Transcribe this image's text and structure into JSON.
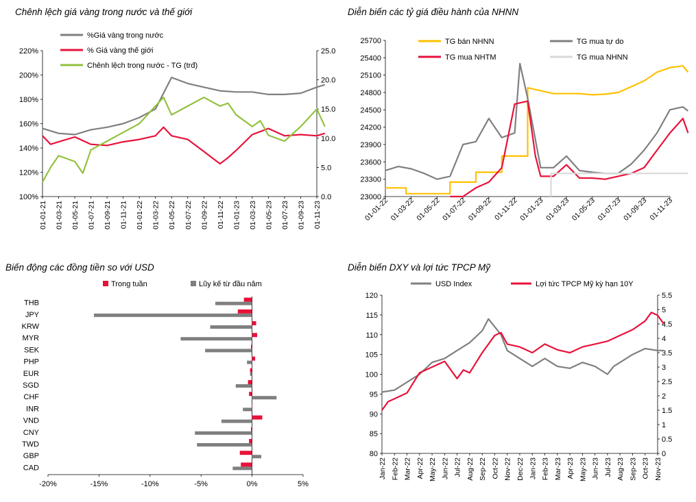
{
  "chart_data": [
    {
      "type": "line",
      "title": "Chênh lệch giá vàng trong nước và thế giới",
      "x_tick_labels": [
        "01-01-21",
        "01-03-21",
        "01-05-21",
        "01-07-21",
        "01-09-21",
        "01-11-21",
        "01-01-22",
        "01-03-22",
        "01-05-22",
        "01-07-22",
        "01-09-22",
        "01-11-22",
        "01-01-23",
        "01-03-23",
        "01-05-23",
        "01-07-23",
        "01-09-23",
        "01-11-23"
      ],
      "y_left": {
        "ticks": [
          "100%",
          "120%",
          "140%",
          "160%",
          "180%",
          "200%",
          "220%"
        ],
        "min": 100,
        "max": 220
      },
      "y_right": {
        "ticks": [
          "0.0",
          "5.0",
          "10.0",
          "15.0",
          "20.0",
          "25.0"
        ],
        "min": 0,
        "max": 25
      },
      "series": [
        {
          "name": "%Giá vàng trong nước",
          "axis": "left",
          "color": "#7f7f7f",
          "x": [
            0,
            1,
            2,
            3,
            4,
            5,
            6,
            7,
            8,
            9,
            10,
            11,
            12,
            13,
            14,
            15,
            16,
            17,
            17.5
          ],
          "values": [
            156,
            152,
            151,
            155,
            157,
            160,
            165,
            172,
            198,
            193,
            190,
            187,
            186,
            186,
            184,
            184,
            185,
            190,
            192
          ]
        },
        {
          "name": "% Giá vàng thế giới",
          "axis": "left",
          "color": "#e8113a",
          "x": [
            0,
            0.5,
            1,
            2,
            3,
            4,
            5,
            6,
            7,
            7.5,
            8,
            9,
            10,
            11,
            11.5,
            12,
            13,
            14,
            15,
            16,
            17,
            17.5
          ],
          "values": [
            150,
            143,
            145,
            149,
            143,
            142,
            145,
            147,
            150,
            157,
            150,
            147,
            137,
            127,
            132,
            138,
            151,
            156,
            150,
            151,
            150,
            152
          ]
        },
        {
          "name": "Chênh lệch trong nước - TG (trđ)",
          "axis": "right",
          "color": "#92c13e",
          "x": [
            0,
            0.5,
            1,
            2,
            2.5,
            3,
            4,
            5,
            6,
            7,
            7.5,
            8,
            9,
            10,
            11,
            11.5,
            12,
            13,
            13.5,
            14,
            15,
            16,
            17,
            17.5
          ],
          "values": [
            2.5,
            5,
            7,
            6,
            4,
            8,
            9.5,
            11,
            12.5,
            15.5,
            17,
            14,
            15.5,
            17,
            15.5,
            16,
            14,
            12,
            13,
            10.5,
            9.5,
            12,
            15,
            12
          ]
        }
      ]
    },
    {
      "type": "line",
      "title": "Diễn biến các tỷ giá điều hành của NHNN",
      "x_tick_labels": [
        "01-01-22",
        "01-03-22",
        "01-05-22",
        "01-07-22",
        "01-09-22",
        "01-11-22",
        "01-01-23",
        "01-03-23",
        "01-05-23",
        "01-07-23",
        "01-09-23",
        "01-11-23"
      ],
      "y": {
        "ticks": [
          "23000",
          "23300",
          "23600",
          "23900",
          "24200",
          "24500",
          "24800",
          "25100",
          "25400",
          "25700"
        ],
        "min": 23000,
        "max": 25700
      },
      "series": [
        {
          "name": "TG bán NHNN",
          "color": "#ffc000",
          "x": [
            0,
            0.8,
            0.8,
            2.5,
            2.5,
            3.5,
            3.5,
            4.5,
            4.5,
            5.5,
            5.5,
            6.5,
            7,
            7.5,
            8,
            8.5,
            9,
            9.5,
            10,
            10.5,
            11,
            11.5,
            11.7
          ],
          "values": [
            23150,
            23150,
            23050,
            23050,
            23250,
            23250,
            23420,
            23420,
            23700,
            23700,
            24880,
            24780,
            24780,
            24780,
            24760,
            24770,
            24800,
            24900,
            25000,
            25150,
            25230,
            25260,
            25150
          ]
        },
        {
          "name": "TG mua tự do",
          "color": "#7f7f7f",
          "x": [
            0,
            0.5,
            1,
            1.5,
            2,
            2.5,
            3,
            3.5,
            4,
            4.5,
            5,
            5.2,
            5.5,
            6,
            6.5,
            7,
            7.5,
            8,
            8.5,
            9,
            9.5,
            10,
            10.5,
            11,
            11.5,
            11.7
          ],
          "values": [
            23450,
            23520,
            23480,
            23400,
            23300,
            23350,
            23900,
            23950,
            24350,
            24020,
            24100,
            25300,
            24700,
            23500,
            23500,
            23700,
            23450,
            23420,
            23400,
            23400,
            23560,
            23800,
            24100,
            24500,
            24550,
            24480
          ]
        },
        {
          "name": "TG mua NHTM",
          "color": "#e8113a",
          "x": [
            2.5,
            3,
            3.5,
            4,
            4.5,
            5,
            5.5,
            5.8,
            6,
            6.5,
            7,
            7.5,
            8,
            8.5,
            9,
            9.5,
            10,
            10.5,
            11,
            11.5,
            11.7
          ],
          "values": [
            23000,
            23000,
            23150,
            23250,
            23500,
            24600,
            24650,
            23700,
            23350,
            23350,
            23550,
            23320,
            23320,
            23300,
            23350,
            23400,
            23500,
            23800,
            24100,
            24350,
            24100
          ]
        },
        {
          "name": "TG mua NHNN",
          "color": "#d9d9d9",
          "x": [
            6.4,
            6.4,
            11.7
          ],
          "values": [
            23000,
            23400,
            23400
          ]
        }
      ]
    },
    {
      "type": "bar",
      "title": "Biến động các đồng tiền so với USD",
      "orientation": "horizontal",
      "categories": [
        "THB",
        "JPY",
        "KRW",
        "MYR",
        "SEK",
        "PHP",
        "EUR",
        "SGD",
        "CHF",
        "INR",
        "VND",
        "CNY",
        "TWD",
        "GBP",
        "CAD"
      ],
      "x_tick_labels": [
        "-20%",
        "-15%",
        "-10%",
        "-5%",
        "0%",
        "5%"
      ],
      "xlim": [
        -20,
        5
      ],
      "series": [
        {
          "name": "Trong tuần",
          "color": "#e8113a",
          "values": [
            -0.8,
            -1.4,
            0.4,
            0.5,
            -0.1,
            0.3,
            -0.2,
            -0.4,
            -0.3,
            0.0,
            1.0,
            -0.1,
            -0.3,
            -1.2,
            -1.1
          ]
        },
        {
          "name": "Lũy kế từ đầu năm",
          "color": "#7f7f7f",
          "values": [
            -3.6,
            -15.5,
            -4.1,
            -7.0,
            -4.6,
            -0.5,
            -0.2,
            -1.6,
            2.4,
            -0.9,
            -3.0,
            -5.6,
            -5.4,
            0.9,
            -1.9
          ]
        }
      ]
    },
    {
      "type": "line",
      "title": "Diễn biến DXY và lợi tức TPCP Mỹ",
      "x_tick_labels": [
        "Jan-22",
        "Feb-22",
        "Mar-22",
        "Apr-22",
        "May-22",
        "Jun-22",
        "Jul-22",
        "Aug-22",
        "Sep-22",
        "Oct-22",
        "Nov-22",
        "Dec-22",
        "Jan-23",
        "Feb-23",
        "Mar-23",
        "Apr-23",
        "May-23",
        "Jun-23",
        "Jul-23",
        "Aug-23",
        "Sep-23",
        "Oct-23",
        "Nov-23"
      ],
      "y_left": {
        "ticks": [
          "80",
          "85",
          "90",
          "95",
          "100",
          "105",
          "110",
          "115",
          "120"
        ],
        "min": 80,
        "max": 120
      },
      "y_right": {
        "ticks": [
          "0",
          "0.5",
          "1",
          "1.5",
          "2",
          "2.5",
          "3",
          "3.5",
          "4",
          "4.5",
          "5",
          "5.5"
        ],
        "min": 0,
        "max": 5.5
      },
      "series": [
        {
          "name": "USD Index",
          "axis": "left",
          "color": "#7f7f7f",
          "x": [
            0,
            1,
            2,
            3,
            4,
            5,
            6,
            7,
            8,
            8.5,
            9,
            9.5,
            10,
            11,
            12,
            13,
            14,
            15,
            16,
            17,
            18,
            18.5,
            19,
            20,
            21,
            22,
            22.5
          ],
          "values": [
            95.5,
            96,
            98,
            100,
            103,
            104,
            106,
            108,
            111,
            114,
            112,
            110,
            106,
            104,
            102,
            104,
            102,
            101.5,
            103,
            102,
            100,
            102,
            103,
            105,
            106.5,
            106,
            106
          ]
        },
        {
          "name": "Lợi tức TPCP Mỹ kỳ hạn 10Y",
          "axis": "right",
          "color": "#e8113a",
          "x": [
            0,
            0.5,
            1,
            2,
            3,
            4,
            5,
            6,
            6.5,
            7,
            8,
            9,
            9.5,
            10,
            11,
            12,
            13,
            14,
            15,
            16,
            17,
            18,
            19,
            20,
            21,
            21.5,
            22,
            22.5
          ],
          "values": [
            1.5,
            1.8,
            1.9,
            2.1,
            2.8,
            3.0,
            3.2,
            2.6,
            2.9,
            2.8,
            3.5,
            4.1,
            4.2,
            3.8,
            3.7,
            3.5,
            3.8,
            3.6,
            3.5,
            3.7,
            3.8,
            3.9,
            4.1,
            4.3,
            4.6,
            4.9,
            4.8,
            4.5
          ]
        }
      ]
    }
  ]
}
